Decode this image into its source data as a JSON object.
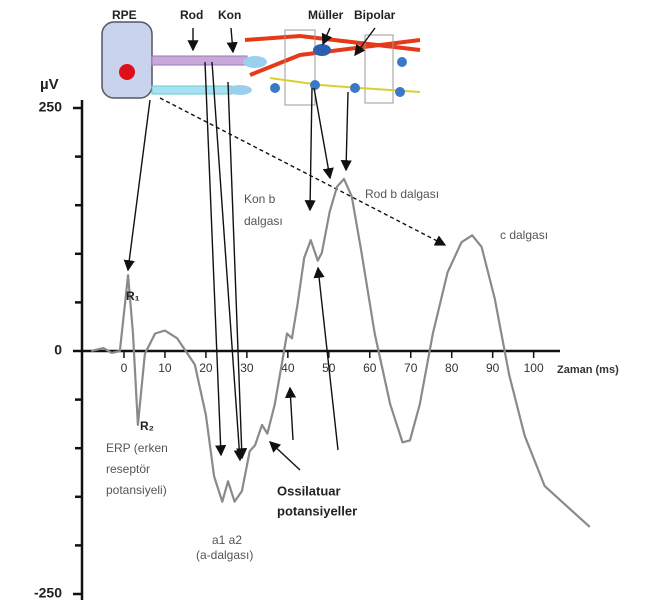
{
  "chart_data": {
    "type": "line",
    "ylabel": "µV",
    "xlabel": "Zaman (ms)",
    "xlim": [
      -10,
      114
    ],
    "ylim": [
      -250,
      250
    ],
    "xticks": [
      0,
      10,
      20,
      30,
      40,
      50,
      60,
      70,
      80,
      90,
      100
    ],
    "yticks": [
      250,
      0,
      -250
    ],
    "minor_yticks": [
      200,
      150,
      100,
      50,
      -50,
      -100,
      -150,
      -200
    ],
    "series": [
      {
        "color": "#8a8a8a",
        "x": [
          -8,
          -5,
          -3,
          -1,
          1,
          2.2,
          3.4,
          5.1,
          7.6,
          10,
          13,
          17.3,
          20,
          22,
          24,
          25.4,
          27,
          28.8,
          30.7,
          32,
          33.7,
          35,
          36.8,
          38.5,
          39.8,
          41,
          42.4,
          44,
          45.6,
          47.3,
          48.3,
          50.2,
          52,
          53.7,
          55.6,
          58,
          61.2,
          65,
          68,
          69.8,
          72.2,
          75.4,
          79,
          82.4,
          85,
          87.3,
          90.5,
          94,
          97.8,
          102.7,
          113.7
        ],
        "values": [
          0,
          3,
          -2,
          0,
          78,
          18,
          -76,
          -3,
          18,
          21,
          13,
          -14,
          -66,
          -129,
          -155,
          -134,
          -155,
          -144,
          -103,
          -97,
          -76,
          -85,
          -55,
          -14,
          18,
          13,
          49,
          96,
          114,
          93,
          101,
          143,
          169,
          177,
          159,
          101,
          18,
          -55,
          -94,
          -92,
          -55,
          18,
          81,
          112,
          119,
          107,
          54,
          -24,
          -87,
          -139,
          -181
        ]
      }
    ],
    "annotations": [
      {
        "text": "RPE"
      },
      {
        "text": "Rod"
      },
      {
        "text": "Kon"
      },
      {
        "text": "Müller"
      },
      {
        "text": "Bipolar"
      },
      {
        "text": "R₁"
      },
      {
        "text": "R₂"
      },
      {
        "text": "ERP (erken"
      },
      {
        "text": "reseptör"
      },
      {
        "text": "potansiyeli)"
      },
      {
        "text": "a1  a2"
      },
      {
        "text": "(a-dalgası)"
      },
      {
        "text": "Ossilatuar"
      },
      {
        "text": "potansiyeller"
      },
      {
        "text": "Kon b"
      },
      {
        "text": "dalgası"
      },
      {
        "text": "Rod b dalgası"
      },
      {
        "text": "c dalgası"
      }
    ]
  }
}
